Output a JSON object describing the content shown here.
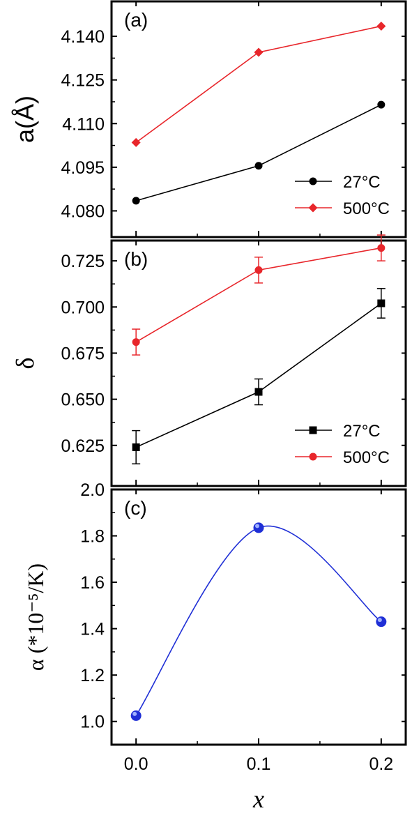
{
  "figure": {
    "xlabel": "x",
    "x_ticks": [
      "0.0",
      "0.1",
      "0.2"
    ]
  },
  "chart_data": [
    {
      "type": "line",
      "panel_label": "(a)",
      "ylabel": "a(Å)",
      "xlim": [
        -0.02,
        0.22
      ],
      "ylim": [
        4.071,
        4.152
      ],
      "y_ticks": [
        4.08,
        4.095,
        4.11,
        4.125,
        4.14
      ],
      "y_tick_labels": [
        "4.080",
        "4.095",
        "4.110",
        "4.125",
        "4.140"
      ],
      "grid": false,
      "legend_position": "bottom-right",
      "series": [
        {
          "name": "27°C",
          "color": "#000000",
          "marker": "circle",
          "x": [
            0.0,
            0.1,
            0.2
          ],
          "y": [
            4.0835,
            4.0955,
            4.1165
          ]
        },
        {
          "name": "500°C",
          "color": "#e8262b",
          "marker": "diamond",
          "x": [
            0.0,
            0.1,
            0.2
          ],
          "y": [
            4.1035,
            4.1345,
            4.1435
          ]
        }
      ]
    },
    {
      "type": "line",
      "panel_label": "(b)",
      "ylabel": "δ",
      "xlim": [
        -0.02,
        0.22
      ],
      "ylim": [
        0.603,
        0.736
      ],
      "y_ticks": [
        0.625,
        0.65,
        0.675,
        0.7,
        0.725
      ],
      "y_tick_labels": [
        "0.625",
        "0.650",
        "0.675",
        "0.700",
        "0.725"
      ],
      "grid": false,
      "legend_position": "bottom-right",
      "series": [
        {
          "name": "27°C",
          "color": "#000000",
          "marker": "square",
          "x": [
            0.0,
            0.1,
            0.2
          ],
          "y": [
            0.624,
            0.654,
            0.702
          ],
          "err": [
            0.009,
            0.007,
            0.008
          ]
        },
        {
          "name": "500°C",
          "color": "#e8262b",
          "marker": "circle",
          "x": [
            0.0,
            0.1,
            0.2
          ],
          "y": [
            0.681,
            0.72,
            0.732
          ],
          "err": [
            0.007,
            0.007,
            0.007
          ]
        }
      ]
    },
    {
      "type": "line",
      "panel_label": "(c)",
      "ylabel": "α (*10⁻⁵/K)",
      "xlim": [
        -0.02,
        0.22
      ],
      "ylim": [
        0.9,
        2.0
      ],
      "y_ticks": [
        1.0,
        1.2,
        1.4,
        1.6,
        1.8,
        2.0
      ],
      "y_tick_labels": [
        "1.0",
        "1.2",
        "1.4",
        "1.6",
        "1.8",
        "2.0"
      ],
      "grid": false,
      "series": [
        {
          "color": "#1f2fd6",
          "marker": "circle",
          "smooth": true,
          "x": [
            0.0,
            0.1,
            0.2
          ],
          "y": [
            1.025,
            1.835,
            1.43
          ]
        }
      ]
    }
  ]
}
